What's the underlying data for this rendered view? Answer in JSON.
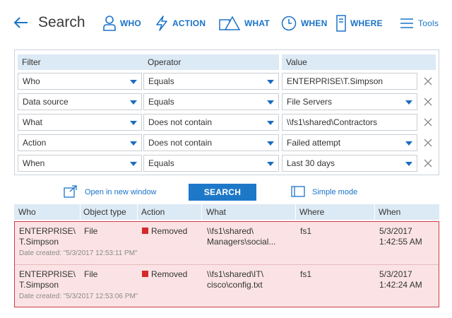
{
  "header": {
    "title": "Search",
    "nav": [
      {
        "label": "WHO",
        "icon": "person-icon"
      },
      {
        "label": "ACTION",
        "icon": "lightning-icon"
      },
      {
        "label": "WHAT",
        "icon": "shapes-icon"
      },
      {
        "label": "WHEN",
        "icon": "clock-icon"
      },
      {
        "label": "WHERE",
        "icon": "server-icon"
      }
    ],
    "tools_label": "Tools"
  },
  "filters": {
    "headers": [
      "Filter",
      "Operator",
      "Value"
    ],
    "rows": [
      {
        "filter": "Who",
        "operator": "Equals",
        "value": "ENTERPRISE\\T.Simpson",
        "value_dropdown": false
      },
      {
        "filter": "Data source",
        "operator": "Equals",
        "value": "File Servers",
        "value_dropdown": true
      },
      {
        "filter": "What",
        "operator": "Does not contain",
        "value": "\\\\fs1\\shared\\Contractors",
        "value_dropdown": false
      },
      {
        "filter": "Action",
        "operator": "Does not contain",
        "value": "Failed attempt",
        "value_dropdown": true
      },
      {
        "filter": "When",
        "operator": "Equals",
        "value": "Last 30 days",
        "value_dropdown": true
      }
    ]
  },
  "actions": {
    "open_new_window": "Open in new window",
    "search": "SEARCH",
    "simple_mode": "Simple mode"
  },
  "results": {
    "headers": [
      "Who",
      "Object type",
      "Action",
      "What",
      "Where",
      "When"
    ],
    "rows": [
      {
        "who_line1": "ENTERPRISE\\",
        "who_line2": "T.Simpson",
        "object_type": "File",
        "action": "Removed",
        "what_line1": "\\\\fs1\\shared\\",
        "what_line2": "Managers\\social...",
        "where": "fs1",
        "when_line1": "5/3/2017",
        "when_line2": "1:42:55 AM",
        "date_created": "Date created: \"5/3/2017 12:53:11 PM\""
      },
      {
        "who_line1": "ENTERPRISE\\",
        "who_line2": "T.Simpson",
        "object_type": "File",
        "action": "Removed",
        "what_line1": "\\\\fs1\\shared\\IT\\",
        "what_line2": "cisco\\config.txt",
        "where": "fs1",
        "when_line1": "5/3/2017",
        "when_line2": "1:42:24 AM",
        "date_created": "Date created: \"5/3/2017 12:53:06 PM\""
      }
    ]
  },
  "colors": {
    "accent": "#1a73c8",
    "header_bg": "#dceaf5",
    "result_bg": "#fbe3e5",
    "result_border": "#cf3b45",
    "removed_marker": "#d42a2a"
  }
}
